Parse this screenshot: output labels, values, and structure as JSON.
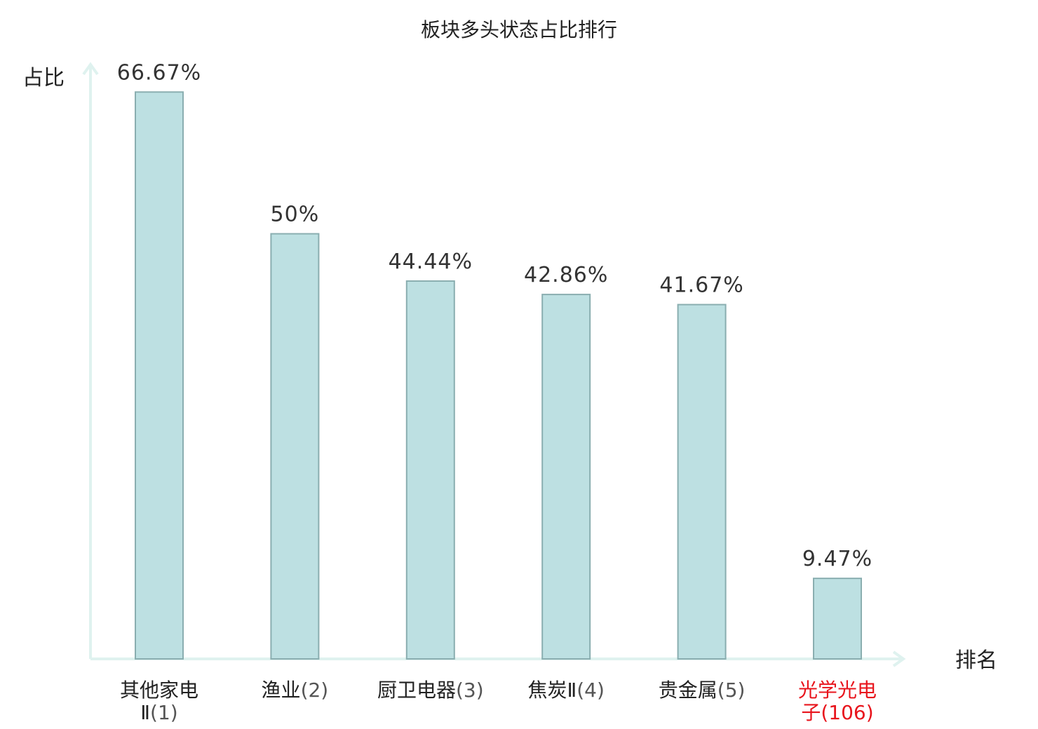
{
  "chart_data": {
    "type": "bar",
    "title": "板块多头状态占比排行",
    "ylabel": "占比",
    "xlabel": "排名",
    "ylim": [
      0,
      70
    ],
    "grid": false,
    "categories": [
      {
        "name": "其他家电",
        "name2": "Ⅱ",
        "rank": "(1)",
        "highlight": false
      },
      {
        "name": "渔业",
        "name2": "",
        "rank": "(2)",
        "highlight": false
      },
      {
        "name": "厨卫电器",
        "name2": "",
        "rank": "(3)",
        "highlight": false
      },
      {
        "name": "焦炭Ⅱ",
        "name2": "",
        "rank": "(4)",
        "highlight": false
      },
      {
        "name": "贵金属",
        "name2": "",
        "rank": "(5)",
        "highlight": false
      },
      {
        "name": "光学光电",
        "name2": "子",
        "rank": "(106)",
        "highlight": true
      }
    ],
    "values": [
      66.67,
      50,
      44.44,
      42.86,
      41.67,
      9.47
    ],
    "value_labels": [
      "66.67%",
      "50%",
      "44.44%",
      "42.86%",
      "41.67%",
      "9.47%"
    ],
    "colors": {
      "bar_fill": "#bde0e2",
      "bar_stroke": "#8aaeb0",
      "axis": "#dff2ef",
      "highlight": "#e8141c"
    }
  }
}
